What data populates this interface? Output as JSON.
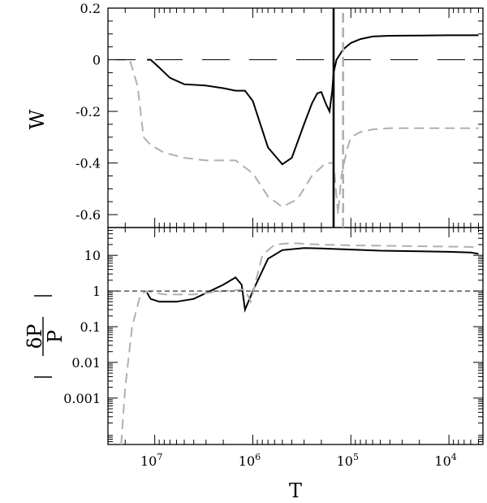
{
  "chart_data": [
    {
      "type": "line",
      "panel": "top",
      "ylabel": "W",
      "xlabel": "",
      "x_scale": "log",
      "x_reversed": true,
      "xlim": [
        30000000,
        4500
      ],
      "ylim": [
        -0.65,
        0.2
      ],
      "y_ticks": [
        0.2,
        0,
        -0.2,
        -0.4,
        -0.6
      ],
      "y_tick_labels": [
        "0.2",
        "0",
        "-0.2",
        "-0.4",
        "-0.6"
      ],
      "series": [
        {
          "style": "solid-black",
          "x": [
            12000000,
            11000000,
            9000000,
            7000000,
            5000000,
            3000000,
            2000000,
            1500000,
            1200000,
            1000000,
            700000,
            500000,
            400000,
            300000,
            250000,
            220000,
            200000,
            180000,
            165000,
            155000,
            150000,
            140000,
            120000,
            100000,
            80000,
            60000,
            40000,
            20000,
            10000,
            5000
          ],
          "y": [
            0.0,
            0.0,
            -0.03,
            -0.07,
            -0.095,
            -0.1,
            -0.11,
            -0.12,
            -0.12,
            -0.16,
            -0.34,
            -0.405,
            -0.38,
            -0.25,
            -0.17,
            -0.13,
            -0.125,
            -0.17,
            -0.2,
            -0.12,
            -0.05,
            0.0,
            0.04,
            0.065,
            0.08,
            0.09,
            0.093,
            0.094,
            0.095,
            0.095
          ]
        },
        {
          "style": "dashed-gray",
          "x": [
            25000000,
            18000000,
            15000000,
            13000000,
            11000000,
            8000000,
            5000000,
            3000000,
            1500000,
            1000000,
            700000,
            500000,
            350000,
            250000,
            180000,
            150000,
            135000,
            125000,
            120000,
            110000,
            100000,
            80000,
            60000,
            40000,
            20000,
            10000,
            5000
          ],
          "y": [
            0.0,
            0.0,
            -0.1,
            -0.3,
            -0.33,
            -0.36,
            -0.38,
            -0.39,
            -0.39,
            -0.44,
            -0.53,
            -0.57,
            -0.54,
            -0.45,
            -0.4,
            -0.4,
            -0.6,
            -0.45,
            -0.42,
            -0.35,
            -0.3,
            -0.28,
            -0.27,
            -0.265,
            -0.265,
            -0.265,
            -0.265
          ]
        },
        {
          "style": "long-dash-reference",
          "x": [
            30000000,
            4500
          ],
          "y": [
            0,
            0
          ]
        },
        {
          "style": "vertical-solid",
          "x": [
            150000,
            150000
          ],
          "y": [
            -0.65,
            0.2
          ]
        },
        {
          "style": "vertical-dashed-gray",
          "x": [
            120000,
            120000
          ],
          "y": [
            -0.65,
            0.2
          ]
        }
      ]
    },
    {
      "type": "line",
      "panel": "bottom",
      "ylabel": "|δP/P|",
      "xlabel": "T",
      "x_scale": "log",
      "x_reversed": true,
      "xlim": [
        30000000,
        4500
      ],
      "y_scale": "log",
      "ylim": [
        5e-05,
        60
      ],
      "x_ticks": [
        10000000,
        1000000,
        100000,
        10000
      ],
      "y_ticks": [
        10,
        1,
        0.1,
        0.01,
        0.001
      ],
      "y_tick_labels": [
        "10",
        "1",
        "0.1",
        "0.01",
        "0.001"
      ],
      "series": [
        {
          "style": "solid-black",
          "x": [
            12000000,
            11000000,
            9000000,
            6000000,
            4000000,
            2000000,
            1500000,
            1300000,
            1200000,
            1000000,
            700000,
            500000,
            300000,
            200000,
            100000,
            50000,
            20000,
            10000,
            6000,
            5000
          ],
          "y": [
            0.9,
            0.6,
            0.5,
            0.5,
            0.6,
            1.5,
            2.4,
            1.5,
            0.3,
            1.0,
            8.0,
            14.0,
            16.0,
            15.5,
            14.5,
            13.5,
            13.0,
            12.5,
            12.0,
            11.0
          ]
        },
        {
          "style": "dashed-gray",
          "x": [
            22000000,
            20000000,
            17000000,
            14000000,
            12000000,
            8000000,
            4000000,
            2000000,
            1200000,
            1050000,
            800000,
            600000,
            400000,
            300000,
            200000,
            100000,
            50000,
            20000,
            10000,
            5000
          ],
          "y": [
            5e-05,
            0.002,
            0.1,
            0.8,
            1.0,
            0.8,
            0.8,
            1.0,
            1.1,
            0.5,
            10.0,
            20.0,
            22.0,
            21.0,
            20.0,
            19.0,
            18.5,
            18.0,
            17.5,
            17.0
          ]
        },
        {
          "style": "dashed-reference",
          "x": [
            30000000,
            4500
          ],
          "y": [
            1,
            1
          ]
        }
      ]
    }
  ],
  "x_tick_labels": [
    {
      "base": "10",
      "exp": "7"
    },
    {
      "base": "10",
      "exp": "6"
    },
    {
      "base": "10",
      "exp": "5"
    },
    {
      "base": "10",
      "exp": "4"
    }
  ],
  "labels": {
    "top_ylabel": "W",
    "bottom_ylabel_num": "δP",
    "bottom_ylabel_den": "P",
    "xlabel": "T"
  }
}
